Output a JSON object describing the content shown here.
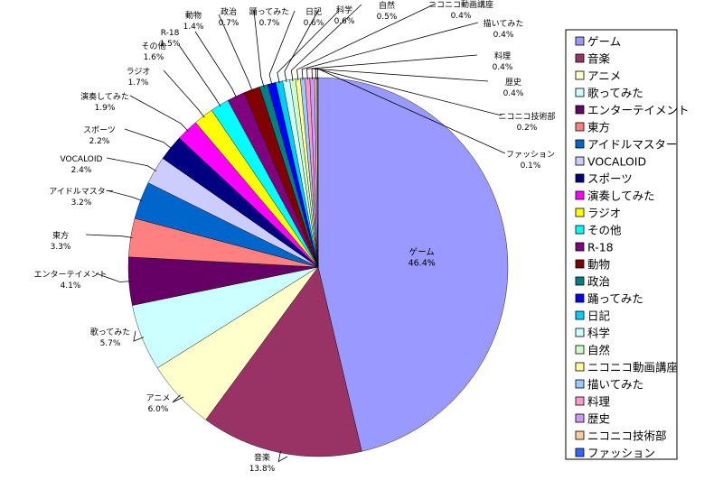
{
  "chart_data": {
    "type": "pie",
    "series": [
      {
        "name": "ゲーム",
        "value": "46.4%",
        "pct": 46.4,
        "color": "#9999ff"
      },
      {
        "name": "音楽",
        "value": "13.8%",
        "pct": 13.8,
        "color": "#993366"
      },
      {
        "name": "アニメ",
        "value": "6.0%",
        "pct": 6.0,
        "color": "#ffffcc"
      },
      {
        "name": "歌ってみた",
        "value": "5.7%",
        "pct": 5.7,
        "color": "#ccffff"
      },
      {
        "name": "エンターテイメント",
        "value": "4.1%",
        "pct": 4.1,
        "color": "#660066"
      },
      {
        "name": "東方",
        "value": "3.3%",
        "pct": 3.3,
        "color": "#ff8080"
      },
      {
        "name": "アイドルマスター",
        "value": "3.2%",
        "pct": 3.2,
        "color": "#0066cc"
      },
      {
        "name": "VOCALOID",
        "value": "2.4%",
        "pct": 2.4,
        "color": "#ccccff"
      },
      {
        "name": "スポーツ",
        "value": "2.2%",
        "pct": 2.2,
        "color": "#000080"
      },
      {
        "name": "演奏してみた",
        "value": "1.9%",
        "pct": 1.9,
        "color": "#ff00ff"
      },
      {
        "name": "ラジオ",
        "value": "1.7%",
        "pct": 1.7,
        "color": "#ffff00"
      },
      {
        "name": "その他",
        "value": "1.6%",
        "pct": 1.6,
        "color": "#00ffff"
      },
      {
        "name": "R-18",
        "value": "1.5%",
        "pct": 1.5,
        "color": "#800080"
      },
      {
        "name": "動物",
        "value": "1.4%",
        "pct": 1.4,
        "color": "#800000"
      },
      {
        "name": "政治",
        "value": "0.7%",
        "pct": 0.7,
        "color": "#008080"
      },
      {
        "name": "踊ってみた",
        "value": "0.7%",
        "pct": 0.7,
        "color": "#0000ff"
      },
      {
        "name": "日記",
        "value": "0.6%",
        "pct": 0.6,
        "color": "#00ccff"
      },
      {
        "name": "科学",
        "value": "0.6%",
        "pct": 0.6,
        "color": "#ccffff"
      },
      {
        "name": "自然",
        "value": "0.5%",
        "pct": 0.5,
        "color": "#ccffcc"
      },
      {
        "name": "ニコニコ動画講座",
        "value": "0.4%",
        "pct": 0.4,
        "color": "#ffff99"
      },
      {
        "name": "描いてみた",
        "value": "0.4%",
        "pct": 0.4,
        "color": "#99ccff"
      },
      {
        "name": "料理",
        "value": "0.4%",
        "pct": 0.4,
        "color": "#ff99cc"
      },
      {
        "name": "歴史",
        "value": "0.4%",
        "pct": 0.4,
        "color": "#cc99ff"
      },
      {
        "name": "ニコニコ技術部",
        "value": "0.2%",
        "pct": 0.2,
        "color": "#ffcc99"
      },
      {
        "name": "ファッション",
        "value": "0.1%",
        "pct": 0.1,
        "color": "#3366ff"
      }
    ],
    "legend_position": "right"
  }
}
